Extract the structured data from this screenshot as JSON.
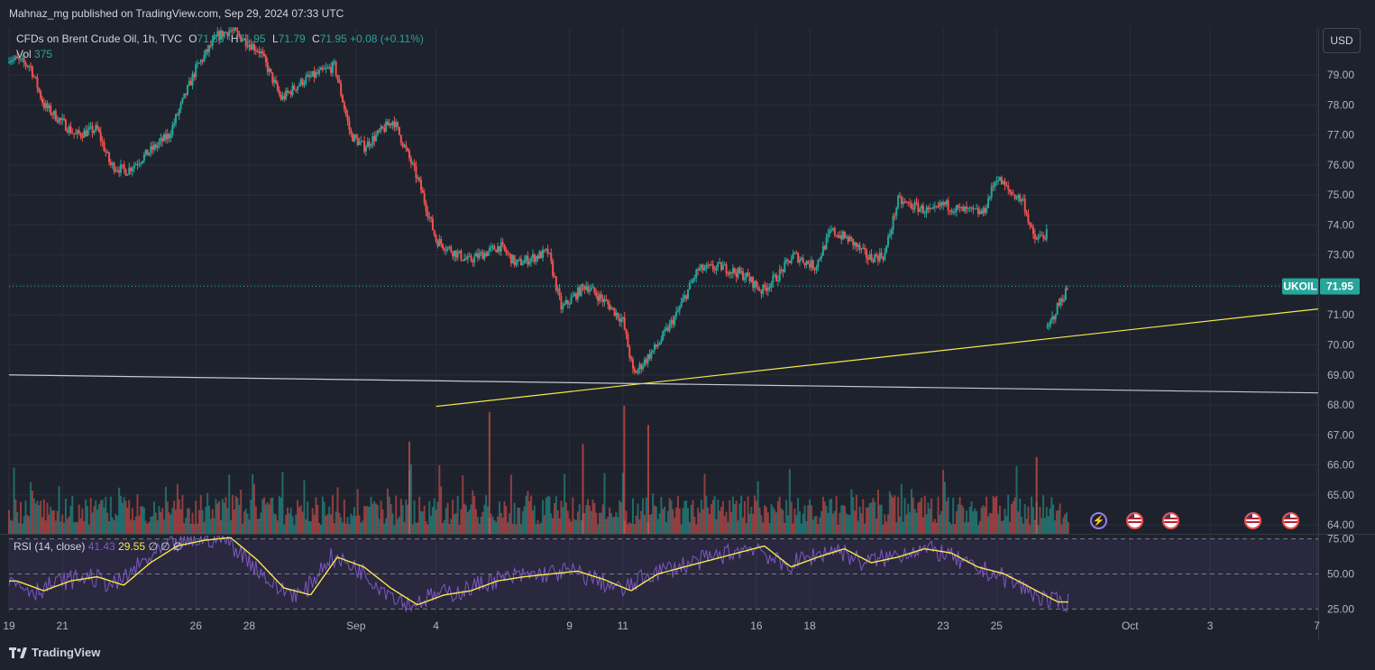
{
  "header": {
    "published_by": "Mahnaz_mg published on TradingView.com, Sep 29, 2024 07:33 UTC"
  },
  "legend": {
    "instrument": "CFDs on Brent Crude Oil, 1h, TVC",
    "open": "71.86",
    "high": "71.95",
    "low": "71.79",
    "close": "71.95",
    "change": "+0.08 (+0.11%)",
    "vol_label": "Vol",
    "vol_value": "375"
  },
  "currency_button": "USD",
  "price_tag": {
    "symbol": "UKOIL",
    "price": "71.95"
  },
  "rsi": {
    "label": "RSI (14, close)",
    "value1": "41.43",
    "value2": "29.55",
    "extra": [
      "∅",
      "∅",
      "∅"
    ]
  },
  "footer": {
    "brand": "TradingView"
  },
  "colors": {
    "bg": "#1e222d",
    "up": "#26a69a",
    "down": "#ef5350",
    "rsi_line": "#7e57c2",
    "rsi_ma": "#f7e94d",
    "trend_line": "#f7e94d",
    "support_line": "#c8c4dc",
    "price_line": "#26a69a"
  },
  "events": [
    {
      "type": "lightning-icon",
      "date": "Sep 27"
    },
    {
      "type": "us-flag-icon",
      "date": "Sep 28"
    },
    {
      "type": "us-flag-icon",
      "date": "Sep 29"
    },
    {
      "type": "us-flag-icon",
      "date": "Oct 2"
    },
    {
      "type": "us-flag-icon",
      "date": "Oct 3"
    }
  ],
  "chart_data": {
    "type": "candlestick",
    "timeframe": "1h",
    "symbol": "UKOIL",
    "price_axis_ticks": [
      "79.00",
      "78.00",
      "77.00",
      "76.00",
      "75.00",
      "74.00",
      "73.00",
      "72.00",
      "71.00",
      "70.00",
      "69.00",
      "68.00",
      "67.00",
      "66.00",
      "65.00",
      "64.00"
    ],
    "ylim": [
      63.7,
      80.6
    ],
    "rsi_axis_ticks": [
      "75.00",
      "50.00",
      "25.00"
    ],
    "rsi_ylim": [
      22,
      78
    ],
    "x_ticks": [
      "19",
      "21",
      "26",
      "28",
      "Sep",
      "4",
      "9",
      "11",
      "16",
      "18",
      "23",
      "25",
      "Oct",
      "3",
      "7"
    ],
    "x_tick_days": [
      19,
      21,
      26,
      28,
      32,
      35,
      40,
      42,
      47,
      49,
      54,
      56,
      61,
      64,
      68
    ],
    "x_range_days": [
      19,
      68.05
    ],
    "price_path_days": [
      19.0,
      19.8,
      20.3,
      21.5,
      22.3,
      22.8,
      23.4,
      25.0,
      26.0,
      26.8,
      27.3,
      28.4,
      29.2,
      30.0,
      31.2,
      31.8,
      32.3,
      33.4,
      34.1,
      34.4,
      35.0,
      35.5,
      36.2,
      37.4,
      38.0,
      39.2,
      39.7,
      40.6,
      41.5,
      42.0,
      42.4,
      43.3,
      44.0,
      44.8,
      45.7,
      46.6,
      47.2,
      47.8,
      48.4,
      49.2,
      49.8,
      50.5,
      51.2,
      51.8,
      52.3,
      53.0,
      53.6,
      54.0,
      54.6,
      55.5,
      56.0,
      56.5,
      57.0,
      57.4,
      57.9
    ],
    "price_path_values": [
      79.6,
      79.3,
      78.0,
      77.0,
      77.2,
      76.0,
      75.8,
      77.0,
      79.2,
      80.3,
      80.5,
      79.8,
      78.2,
      78.8,
      79.3,
      77.0,
      76.6,
      77.5,
      76.0,
      75.3,
      73.5,
      73.2,
      72.8,
      73.3,
      72.7,
      73.1,
      71.2,
      72.0,
      71.3,
      70.8,
      69.0,
      70.0,
      71.0,
      72.5,
      72.6,
      72.3,
      71.8,
      72.3,
      73.0,
      72.6,
      73.8,
      73.5,
      72.9,
      73.0,
      74.8,
      74.6,
      74.4,
      74.7,
      74.5,
      74.4,
      75.6,
      75.1,
      74.8,
      73.5,
      73.7
    ],
    "price_path2_days": [
      57.9,
      58.3,
      58.7
    ],
    "price_path2_values": [
      70.5,
      71.3,
      71.95
    ],
    "volume_spikes": [
      {
        "day": 37.0,
        "rel": 0.95
      },
      {
        "day": 42.05,
        "rel": 1.0
      },
      {
        "day": 40.5,
        "rel": 0.7
      },
      {
        "day": 34.0,
        "rel": 0.72
      },
      {
        "day": 42.95,
        "rel": 0.85
      },
      {
        "day": 57.5,
        "rel": 0.6
      }
    ],
    "trend_line": {
      "from": {
        "day": 35.0,
        "price": 67.95
      },
      "to": {
        "day": 68.05,
        "price": 71.2
      }
    },
    "support_line": {
      "from": {
        "day": 19.0,
        "price": 69.0
      },
      "to": {
        "day": 68.05,
        "price": 68.4
      }
    },
    "last_price": 71.95,
    "rsi_path_days": [
      19,
      20,
      21,
      22,
      23,
      24,
      25,
      26,
      27,
      28,
      29,
      30,
      31,
      32,
      33,
      34,
      35,
      36,
      37,
      38,
      39,
      40,
      41,
      42,
      43,
      44,
      45,
      46,
      47,
      48,
      49,
      50,
      51,
      52,
      53,
      54,
      55,
      56,
      57,
      58
    ],
    "rsi_path_values": [
      45,
      38,
      45,
      48,
      42,
      58,
      70,
      74,
      76,
      60,
      40,
      35,
      62,
      55,
      40,
      28,
      35,
      38,
      45,
      48,
      50,
      52,
      46,
      38,
      50,
      55,
      60,
      65,
      70,
      55,
      62,
      68,
      58,
      62,
      68,
      65,
      55,
      50,
      40,
      30
    ]
  }
}
